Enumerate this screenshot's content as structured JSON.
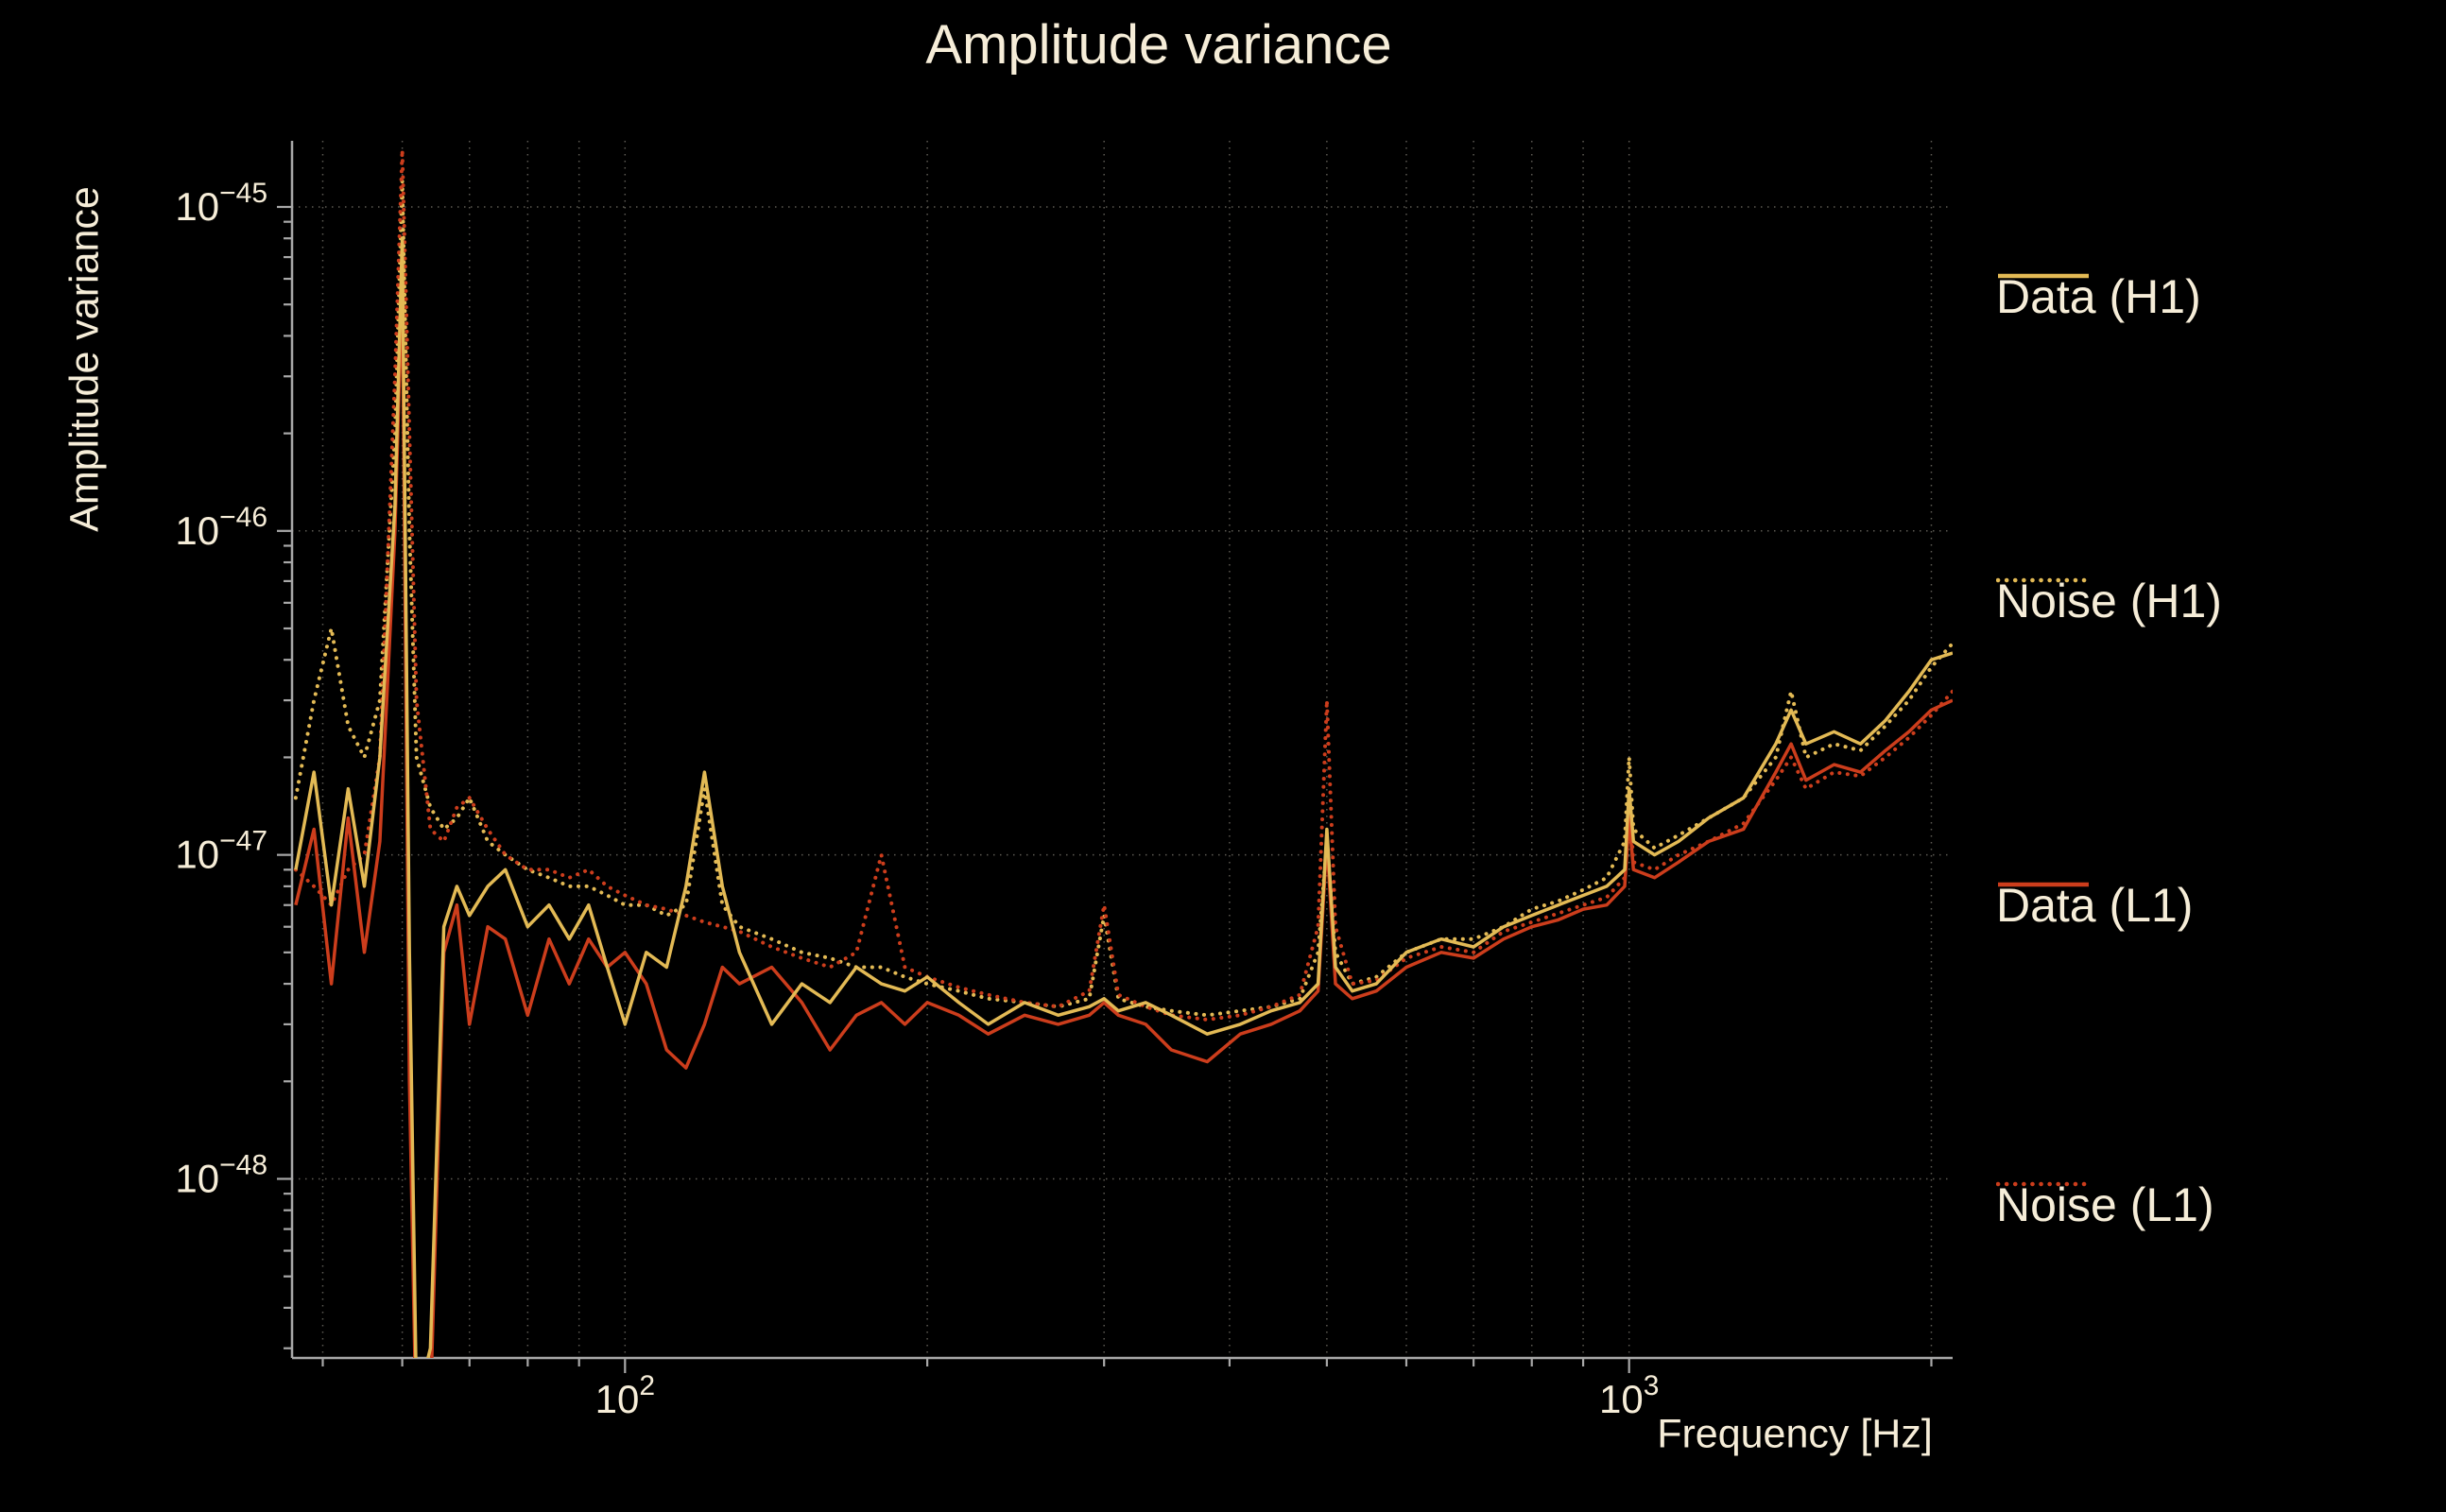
{
  "colors": {
    "background": "#000000",
    "text": "#f6edd8",
    "axis": "#a8a8a8",
    "grid": "#cfc8b8",
    "h1": "#e3ba55",
    "l1": "#cc3d1c"
  },
  "chart_data": {
    "type": "line",
    "title": "Amplitude variance",
    "xlabel": "Frequency [Hz]",
    "ylabel": "Amplitude variance",
    "xscale": "log",
    "yscale": "log",
    "xlim": [
      46.6,
      2100
    ],
    "ylim": [
      2.8e-49,
      1.6e-45
    ],
    "grid": true,
    "legend_position": "right-outside",
    "x_ticks": [
      {
        "value": 100,
        "base": "10",
        "exp": "2"
      },
      {
        "value": 1000,
        "base": "10",
        "exp": "3"
      }
    ],
    "y_ticks": [
      {
        "value": 1e-45,
        "base": "10",
        "exp": "-45"
      },
      {
        "value": 1e-46,
        "base": "10",
        "exp": "-46"
      },
      {
        "value": 1e-47,
        "base": "10",
        "exp": "-47"
      },
      {
        "value": 1e-48,
        "base": "10",
        "exp": "-48"
      }
    ],
    "unit": 1e-48,
    "x": [
      47,
      49,
      51,
      53,
      55,
      57,
      59,
      60,
      61,
      62,
      64,
      66,
      68,
      70,
      73,
      76,
      80,
      84,
      88,
      92,
      96,
      100,
      105,
      110,
      115,
      120,
      125,
      130,
      140,
      150,
      160,
      170,
      180,
      190,
      200,
      215,
      230,
      250,
      270,
      290,
      300,
      310,
      330,
      350,
      380,
      410,
      440,
      470,
      490,
      500,
      510,
      530,
      560,
      600,
      650,
      700,
      750,
      800,
      850,
      900,
      950,
      990,
      1000,
      1010,
      1060,
      1120,
      1200,
      1300,
      1400,
      1450,
      1500,
      1600,
      1700,
      1800,
      1900,
      2000,
      2100
    ],
    "series": [
      {
        "name": "Data (H1)",
        "style": "solid",
        "color": "#e3ba55",
        "values": [
          9,
          18,
          7,
          16,
          8,
          20,
          120,
          800,
          5,
          0.2,
          0.3,
          6,
          8,
          6.5,
          8,
          9,
          6,
          7,
          5.5,
          7,
          4.5,
          3,
          5,
          4.5,
          8,
          18,
          8,
          5,
          3,
          4,
          3.5,
          4.5,
          4,
          3.8,
          4.2,
          3.5,
          3,
          3.5,
          3.2,
          3.4,
          3.6,
          3.3,
          3.5,
          3.2,
          2.8,
          3,
          3.3,
          3.5,
          4,
          12,
          4.5,
          3.8,
          4,
          5,
          5.5,
          5.2,
          6,
          6.5,
          7,
          7.5,
          8,
          9,
          16,
          11,
          10,
          11,
          13,
          15,
          22,
          28,
          22,
          24,
          22,
          26,
          32,
          40,
          42
        ]
      },
      {
        "name": "Noise (H1)",
        "style": "dotted",
        "color": "#e3ba55",
        "values": [
          15,
          30,
          50,
          25,
          20,
          30,
          200,
          1200,
          100,
          20,
          14,
          12,
          13,
          15,
          11,
          10,
          9,
          8.5,
          8,
          8,
          7.5,
          7,
          7,
          6.5,
          7,
          16,
          7,
          6,
          5.5,
          5,
          4.8,
          4.5,
          4.5,
          4.2,
          4,
          3.8,
          3.6,
          3.5,
          3.4,
          3.6,
          6.5,
          3.6,
          3.4,
          3.3,
          3.2,
          3.3,
          3.4,
          3.6,
          5,
          11,
          5,
          4,
          4.2,
          5,
          5.5,
          5.5,
          6,
          6.8,
          7.2,
          7.8,
          8.5,
          11,
          20,
          12,
          10.5,
          11.5,
          13,
          15,
          20,
          32,
          20,
          22,
          21,
          25,
          30,
          38,
          45
        ]
      },
      {
        "name": "Data (L1)",
        "style": "solid",
        "color": "#cc3d1c",
        "values": [
          7,
          12,
          4,
          13,
          5,
          11,
          100,
          600,
          2,
          0.15,
          0.2,
          5,
          7,
          3,
          6,
          5.5,
          3.2,
          5.5,
          4,
          5.5,
          4.5,
          5,
          4,
          2.5,
          2.2,
          3,
          4.5,
          4,
          4.5,
          3.5,
          2.5,
          3.2,
          3.5,
          3,
          3.5,
          3.2,
          2.8,
          3.2,
          3,
          3.2,
          3.5,
          3.2,
          3,
          2.5,
          2.3,
          2.8,
          3,
          3.3,
          3.8,
          11,
          4,
          3.6,
          3.8,
          4.5,
          5,
          4.8,
          5.5,
          6,
          6.3,
          6.8,
          7,
          8,
          13,
          9,
          8.5,
          9.5,
          11,
          12,
          18,
          22,
          17,
          19,
          18,
          21,
          24,
          28,
          30
        ]
      },
      {
        "name": "Noise (L1)",
        "style": "dotted",
        "color": "#cc3d1c",
        "values": [
          9,
          8,
          7,
          9,
          10,
          20,
          300,
          1500,
          200,
          30,
          12,
          11,
          14,
          15,
          12,
          10,
          9,
          9,
          8.5,
          9,
          8,
          7.5,
          7,
          6.8,
          6.5,
          6.2,
          6,
          5.8,
          5.2,
          4.8,
          4.5,
          5,
          10,
          4.5,
          4.2,
          3.9,
          3.7,
          3.5,
          3.4,
          3.8,
          7,
          3.7,
          3.4,
          3.2,
          3.1,
          3.2,
          3.4,
          3.7,
          6,
          30,
          6,
          4,
          4.1,
          4.8,
          5.2,
          5,
          5.8,
          6.2,
          6.6,
          7,
          7.4,
          8.5,
          15,
          9.5,
          9,
          10,
          11,
          12.5,
          17,
          20,
          16,
          18,
          17.5,
          20,
          23,
          27,
          32
        ]
      }
    ]
  }
}
